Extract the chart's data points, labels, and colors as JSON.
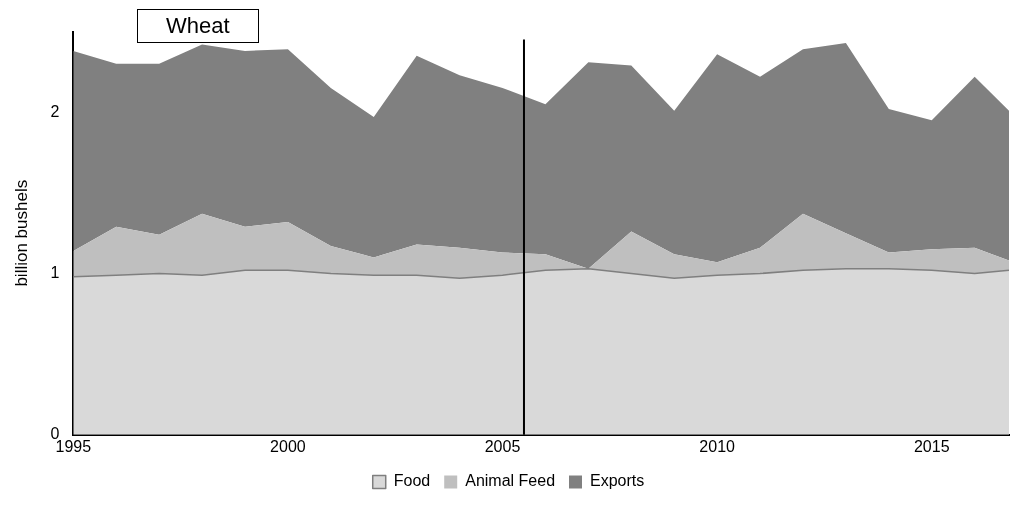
{
  "chart_data": {
    "type": "area",
    "title": "Wheat",
    "ylabel": "billion bushels",
    "stacked": true,
    "x": [
      1995,
      1996,
      1997,
      1998,
      1999,
      2000,
      2001,
      2002,
      2003,
      2004,
      2005,
      2006,
      2007,
      2008,
      2009,
      2010,
      2011,
      2012,
      2013,
      2014,
      2015,
      2016,
      2016.8
    ],
    "series": [
      {
        "name": "Food",
        "color": "#d9d9d9",
        "values": [
          0.98,
          0.99,
          1.0,
          0.99,
          1.02,
          1.02,
          1.0,
          0.99,
          0.99,
          0.97,
          0.99,
          1.02,
          1.03,
          1.0,
          0.97,
          0.99,
          1.0,
          1.02,
          1.03,
          1.03,
          1.02,
          1.0,
          1.02
        ]
      },
      {
        "name": "Animal Feed",
        "color": "#bfbfbf",
        "values": [
          0.16,
          0.3,
          0.24,
          0.38,
          0.27,
          0.3,
          0.17,
          0.11,
          0.19,
          0.19,
          0.14,
          0.1,
          0.0,
          0.26,
          0.15,
          0.08,
          0.16,
          0.35,
          0.22,
          0.1,
          0.13,
          0.16,
          0.06
        ]
      },
      {
        "name": "Exports",
        "color": "#808080",
        "values": [
          1.24,
          1.01,
          1.06,
          1.05,
          1.09,
          1.07,
          0.98,
          0.87,
          1.17,
          1.07,
          1.02,
          0.93,
          1.28,
          1.03,
          0.89,
          1.29,
          1.06,
          1.02,
          1.18,
          0.89,
          0.8,
          1.06,
          0.93
        ]
      }
    ],
    "xlim": [
      1995,
      2016.8
    ],
    "xticks": [
      1995,
      2000,
      2005,
      2010,
      2015
    ],
    "ylim": [
      0,
      2.5
    ],
    "yticks": [
      0,
      1,
      2
    ],
    "ref_lines": [
      {
        "axis": "x",
        "value": 2005.5,
        "color": "#000000"
      }
    ],
    "grid": false,
    "legend": "bottom"
  }
}
